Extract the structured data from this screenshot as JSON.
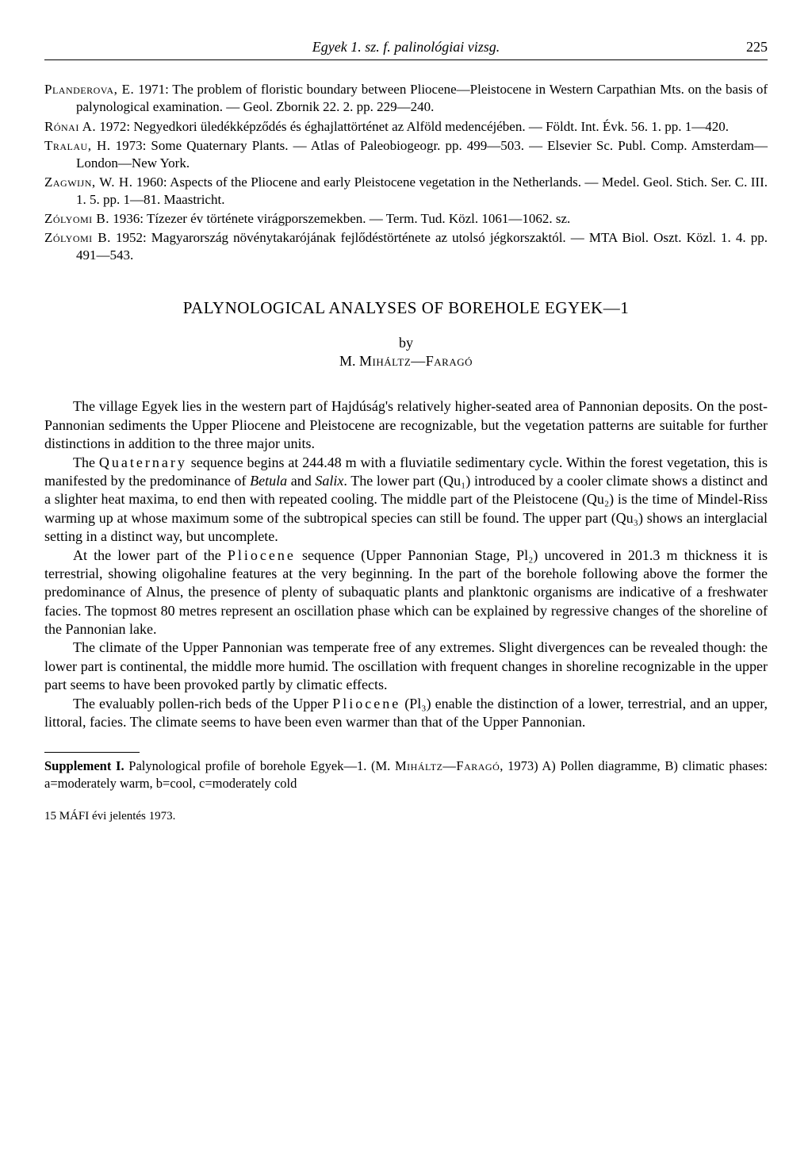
{
  "header": {
    "running_title": "Egyek 1. sz. f. palinológiai vizsg.",
    "page_number": "225"
  },
  "references": [
    {
      "author": "Planderova, E.",
      "text": " 1971: The problem of floristic boundary between Pliocene—Pleistocene in Western Carpathian Mts. on the basis of palynological examination. — Geol. Zbornik 22. 2. pp. 229—240."
    },
    {
      "author": "Rónai A.",
      "text": " 1972: Negyedkori üledékképződés és éghajlattörténet az Alföld medencéjében. — Földt. Int. Évk. 56. 1. pp. 1—420."
    },
    {
      "author": "Tralau, H.",
      "text": " 1973: Some Quaternary Plants. — Atlas of Paleobiogeogr. pp. 499—503. — Elsevier Sc. Publ. Comp. Amsterdam—London—New York."
    },
    {
      "author": "Zagwijn, W. H.",
      "text": " 1960: Aspects of the Pliocene and early Pleistocene vegetation in the Netherlands. — Medel. Geol. Stich. Ser. C. III. 1. 5. pp. 1—81. Maastricht."
    },
    {
      "author": "Zólyomi B.",
      "text": " 1936: Tízezer év története virágporszemekben. — Term. Tud. Közl. 1061—1062. sz."
    },
    {
      "author": "Zólyomi B.",
      "text": " 1952: Magyarország növénytakarójának fejlődéstörténete az utolsó jégkorszaktól. — MTA Biol. Oszt. Közl. 1. 4. pp. 491—543."
    }
  ],
  "article": {
    "title": "PALYNOLOGICAL ANALYSES OF BOREHOLE EGYEK—1",
    "by": "by",
    "author_prefix": "M. ",
    "author_smallcaps": "Miháltz—Faragó",
    "paragraphs": {
      "p1": "The village Egyek lies in the western part of Hajdúság's relatively higher-seated area of Pannonian deposits. On the post-Pannonian sediments the Upper Pliocene and Pleistocene are recognizable, but the vegetation patterns are suitable for further distinctions in addition to the three major units.",
      "p2_a": "The ",
      "p2_quaternary": "Quaternary",
      "p2_b": " sequence begins at 244.48 m with a fluviatile sedimentary cycle. Within the forest vegetation, this is manifested by the predominance of ",
      "p2_it1": "Betula",
      "p2_c": " and ",
      "p2_it2": "Salix",
      "p2_d": ". The lower part (Qu₁) introduced by a cooler climate shows a distinct and a slighter heat maxima, to end then with repeated cooling. The middle part of the Pleistocene (Qu₂) is the time of Mindel-Riss warming up at whose maximum some of the subtropical species can still be found. The upper part (Qu₃) shows an interglacial setting in a distinct way, but uncomplete.",
      "p3_a": "At the lower part of the ",
      "p3_pliocene": "Pliocene",
      "p3_b": " sequence (Upper Pannonian Stage, Pl₂) uncovered in 201.3 m thickness it is terrestrial, showing oligohaline features at the very beginning. In the part of the borehole following above the former the predominance of Alnus, the presence of plenty of subaquatic plants and planktonic organisms are indicative of a freshwater facies. The topmost 80 metres represent an oscillation phase which can be explained by regressive changes of the shoreline of the Pannonian lake.",
      "p4": "The climate of the Upper Pannonian was temperate free of any extremes. Slight divergences can be revealed though: the lower part is continental, the middle more humid. The oscillation with frequent changes in shoreline recognizable in the upper part seems to have been provoked partly by climatic effects.",
      "p5_a": "The evaluably pollen-rich beds of the Upper ",
      "p5_pliocene": "Pliocene",
      "p5_b": " (Pl₃) enable the distinction of a lower, terrestrial, and an upper, littoral, facies. The climate seems to have been even warmer than that of the Upper Pannonian."
    }
  },
  "footnote": {
    "bold": "Supplement I.",
    "text_a": " Palynological profile of borehole Egyek—1. (M. ",
    "author_sc": "Miháltz—Faragó",
    "text_b": ", 1973) A) Pollen diagramme, B) climatic phases: a=moderately warm, b=cool, c=moderately cold"
  },
  "footer": "15  MÁFI évi jelentés 1973."
}
